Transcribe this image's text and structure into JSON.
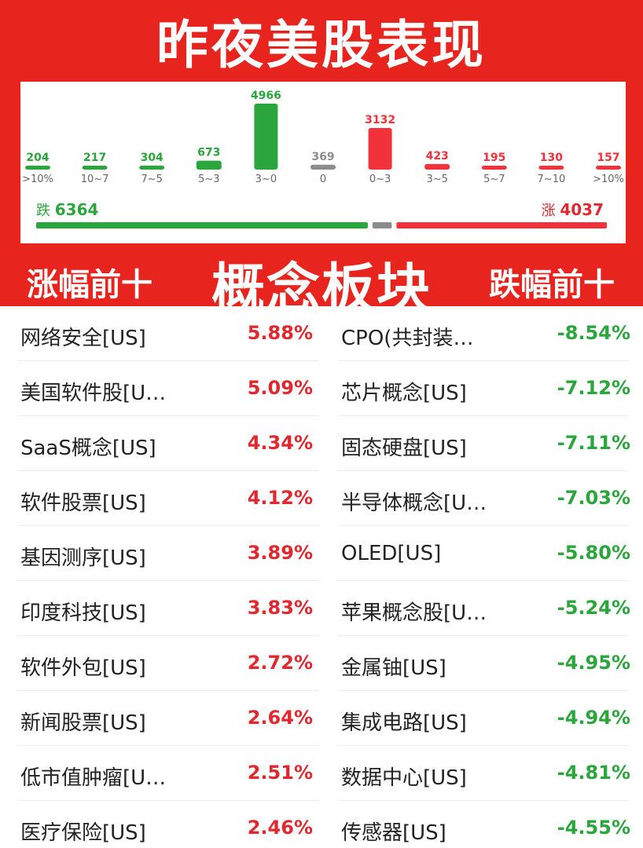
{
  "title": "昨夜美股表现",
  "chart_data": {
    "type": "bar",
    "categories": [
      ">10%",
      "10~7",
      "7~5",
      "5~3",
      "3~0",
      "0",
      "0~3",
      "3~5",
      "5~7",
      "7~10",
      ">10%"
    ],
    "values": [
      204,
      217,
      304,
      673,
      4966,
      369,
      3132,
      423,
      195,
      130,
      157
    ],
    "value_labels": [
      "204",
      "217",
      "304",
      "673",
      "4966",
      "369",
      "3132",
      "423",
      "195",
      "130",
      "157"
    ],
    "bar_colors": [
      "#2aa63c",
      "#2aa63c",
      "#2aa63c",
      "#2aa63c",
      "#2aa63c",
      "#8c8c8c",
      "#f1323a",
      "#f1323a",
      "#f1323a",
      "#f1323a",
      "#f1323a"
    ],
    "down_label": "跌",
    "down_count": "6364",
    "up_label": "涨",
    "up_count": "4037",
    "down_value": 6364,
    "flat_value": 369,
    "up_value": 4037
  },
  "concept": {
    "title": "概念板块",
    "gainers_title": "涨幅前十",
    "losers_title": "跌幅前十"
  },
  "rows": [
    {
      "gainer": "网络安全[US]",
      "gainer_pct": "5.88%",
      "loser": "CPO(共封装…",
      "loser_pct": "-8.54%"
    },
    {
      "gainer": "美国软件股[U…",
      "gainer_pct": "5.09%",
      "loser": "芯片概念[US]",
      "loser_pct": "-7.12%"
    },
    {
      "gainer": "SaaS概念[US]",
      "gainer_pct": "4.34%",
      "loser": "固态硬盘[US]",
      "loser_pct": "-7.11%"
    },
    {
      "gainer": "软件股票[US]",
      "gainer_pct": "4.12%",
      "loser": "半导体概念[U…",
      "loser_pct": "-7.03%"
    },
    {
      "gainer": "基因测序[US]",
      "gainer_pct": "3.89%",
      "loser": "OLED[US]",
      "loser_pct": "-5.80%"
    },
    {
      "gainer": "印度科技[US]",
      "gainer_pct": "3.83%",
      "loser": "苹果概念股[U…",
      "loser_pct": "-5.24%"
    },
    {
      "gainer": "软件外包[US]",
      "gainer_pct": "2.72%",
      "loser": "金属铀[US]",
      "loser_pct": "-4.95%"
    },
    {
      "gainer": "新闻股票[US]",
      "gainer_pct": "2.64%",
      "loser": "集成电路[US]",
      "loser_pct": "-4.94%"
    },
    {
      "gainer": "低市值肿瘤[U…",
      "gainer_pct": "2.51%",
      "loser": "数据中心[US]",
      "loser_pct": "-4.81%"
    },
    {
      "gainer": "医疗保险[US]",
      "gainer_pct": "2.46%",
      "loser": "传感器[US]",
      "loser_pct": "-4.55%"
    }
  ],
  "colors": {
    "brand_red": "#e8241e",
    "up_red": "#e0282e",
    "down_green": "#2aa63c",
    "flat_gray": "#8c8c8c"
  }
}
